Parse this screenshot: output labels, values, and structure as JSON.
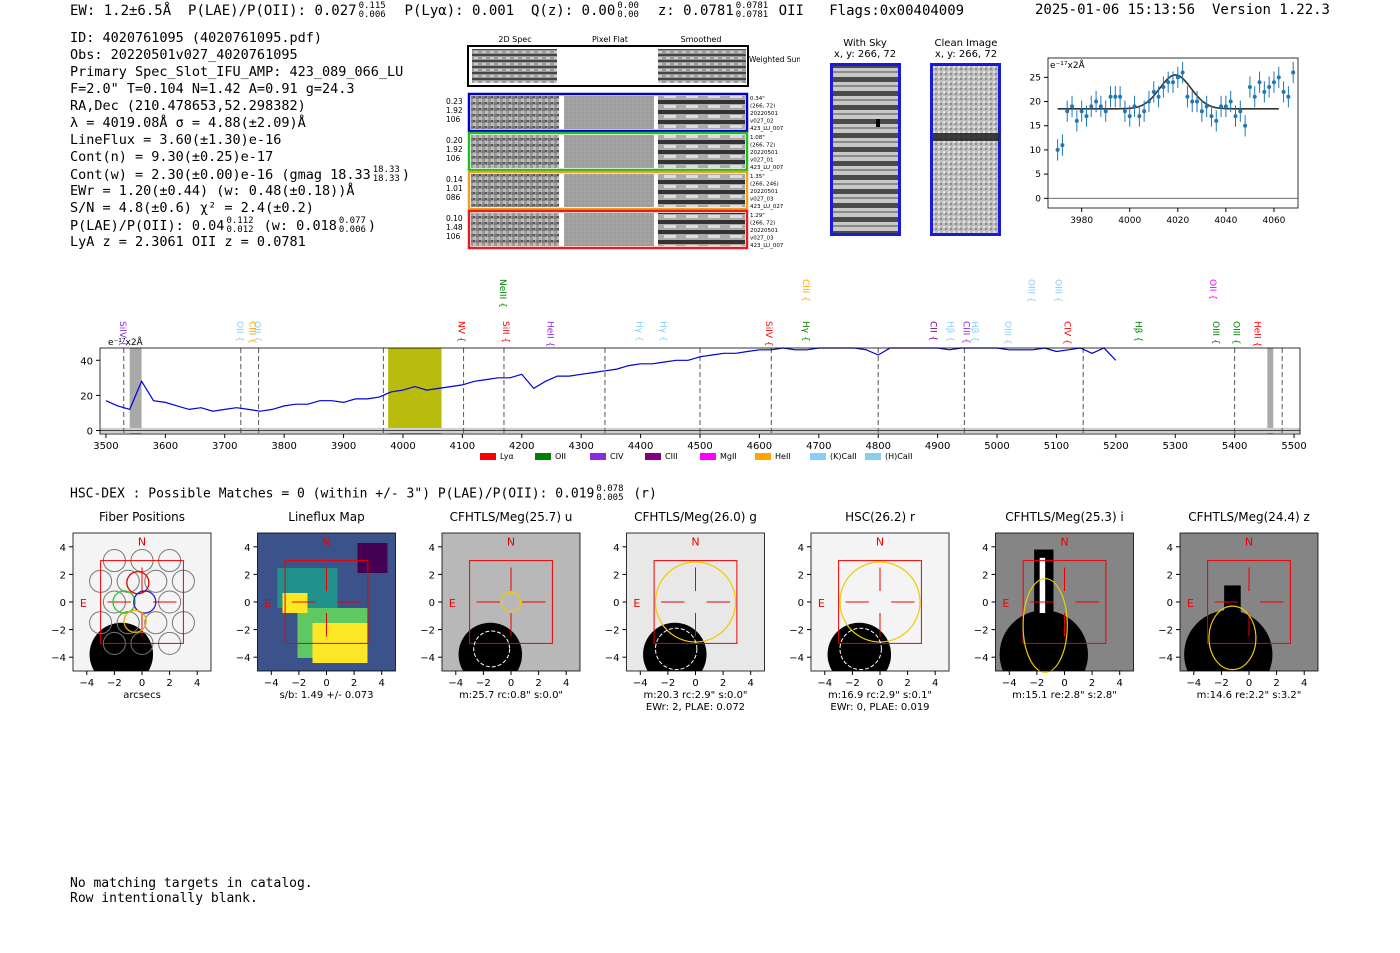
{
  "header": {
    "ew": "EW: 1.2±6.5Å",
    "plae_label": "P(LAE)/P(OII): 0.027",
    "plae_hi": "0.115",
    "plae_lo": "0.006",
    "plya": "P(Lyα): 0.001",
    "qz_label": "Q(z): 0.00",
    "qz_hi": "0.00",
    "qz_lo": "0.00",
    "z_label": "z: 0.0781",
    "z_hi": "0.0781",
    "z_lo": "0.0781",
    "z_line": "OII",
    "flags": "Flags:0x00404009",
    "datetime": "2025-01-06 15:13:56",
    "version": "Version 1.22.3"
  },
  "info_lines": {
    "id": "ID: 4020761095 (4020761095.pdf)",
    "obs": "Obs: 20220501v027_4020761095",
    "primary": "Primary Spec_Slot_IFU_AMP: 423_089_066_LU",
    "fit": "F=2.0\"  T=0.104  N=1.42  A=0.91  g=24.3",
    "radec": "RA,Dec (210.478653,52.298382)",
    "lambda": "λ = 4019.08Å   σ = 4.88(±2.09)Å",
    "lineflux": "LineFlux = 3.60(±1.30)e-16",
    "contn": "Cont(n) = 9.30(±0.25)e-17",
    "contw": "Cont(w) = 2.30(±0.00)e-16 (gmag 18.33",
    "contw_hi": "18.33",
    "contw_lo": "18.33",
    "contw_end": ")",
    "ewr": "EWr = 1.20(±0.44)  (w: 0.48(±0.18))Å",
    "sn": "S/N = 4.8(±0.6)  χ² = 2.4(±0.2)",
    "plae": "P(LAE)/P(OII): 0.04",
    "plae_hi": "0.112",
    "plae_lo": "0.012",
    "plae_w": "(w: 0.018",
    "plae_w_hi": "0.077",
    "plae_w_lo": "0.006",
    "plae_w_end": ")",
    "lya": "LyA z = 2.3061   OII z = 0.0781"
  },
  "cutouts": {
    "col_headers": [
      "2D Spec",
      "Pixel Flat",
      "Smoothed"
    ],
    "weighted_sum": "Weighted Sum",
    "rows": [
      {
        "left": [
          "0.23",
          "1.92",
          "106"
        ],
        "right": [
          "0.34\"",
          "(266, 72)",
          "20220501",
          "v027_02",
          "423_LU_007"
        ],
        "color": "#0000cc"
      },
      {
        "left": [
          "0.20",
          "1.92",
          "106"
        ],
        "right": [
          "1.08\"",
          "(266, 72)",
          "20220501",
          "v027_01",
          "423_LU_007"
        ],
        "color": "#22bb22"
      },
      {
        "left": [
          "0.14",
          "1.01",
          "086"
        ],
        "right": [
          "1.35\"",
          "(266, 246)",
          "20220501",
          "v027_03",
          "423_LU_027"
        ],
        "color": "#f0a020"
      },
      {
        "left": [
          "0.10",
          "1.48",
          "106"
        ],
        "right": [
          "1.29\"",
          "(266, 72)",
          "20220501",
          "v027_03",
          "423_LU_007"
        ],
        "color": "#e02020"
      }
    ]
  },
  "sky_panels": {
    "with_sky": "With Sky",
    "with_sky_xy": "x, y: 266, 72",
    "clean": "Clean Image",
    "clean_xy": "x, y: 266, 72"
  },
  "zoom_plot": {
    "unit": "e⁻¹⁷x2Å",
    "xticks": [
      "3980",
      "4000",
      "4020",
      "4040",
      "4060"
    ],
    "yticks": [
      "0",
      "5",
      "10",
      "15",
      "20",
      "25"
    ]
  },
  "spectrum": {
    "unit": "e⁻¹⁷x2Å",
    "xticks": [
      "3500",
      "3600",
      "3700",
      "3800",
      "3900",
      "4000",
      "4100",
      "4200",
      "4300",
      "4400",
      "4500",
      "4600",
      "4700",
      "4800",
      "4900",
      "5000",
      "5100",
      "5200",
      "5300",
      "5400",
      "5500"
    ],
    "yticks": [
      "0",
      "20",
      "40"
    ],
    "legend": [
      {
        "name": "Lyα",
        "color": "#ff0000"
      },
      {
        "name": "OII",
        "color": "#008000"
      },
      {
        "name": "CIV",
        "color": "#8a2be2"
      },
      {
        "name": "CIII",
        "color": "#800080"
      },
      {
        "name": "MgII",
        "color": "#ff00ff"
      },
      {
        "name": "HeII",
        "color": "#ffa500"
      },
      {
        "name": "(K)CaII",
        "color": "#87cefa"
      },
      {
        "name": "(H)CaII",
        "color": "#87ceeb"
      }
    ],
    "lines": [
      {
        "label": "SiIV",
        "w": 3530,
        "color": "#8a2be2",
        "row": 1
      },
      {
        "label": "OII",
        "w": 3727,
        "color": "#87cefa",
        "row": 1
      },
      {
        "label": "CIII",
        "w": 3748,
        "color": "#ffa500",
        "row": 1
      },
      {
        "label": "OII",
        "w": 3757,
        "color": "#87cefa",
        "row": 1
      },
      {
        "label": "NV",
        "w": 4100,
        "color": "#ff0000",
        "row": 1
      },
      {
        "label": "NeIII",
        "w": 4170,
        "color": "#008000",
        "row": 0
      },
      {
        "label": "SiII",
        "w": 4175,
        "color": "#ff0000",
        "row": 1
      },
      {
        "label": "HeII",
        "w": 4250,
        "color": "#8a2be2",
        "row": 1
      },
      {
        "label": "Hγ",
        "w": 4400,
        "color": "#87cefa",
        "row": 1
      },
      {
        "label": "Hγ",
        "w": 4440,
        "color": "#87cefa",
        "row": 1
      },
      {
        "label": "SiIV",
        "w": 4618,
        "color": "#ff0000",
        "row": 1
      },
      {
        "label": "CIII",
        "w": 4680,
        "color": "#ffa500",
        "row": 0
      },
      {
        "label": "Hγ",
        "w": 4680,
        "color": "#008000",
        "row": 1
      },
      {
        "label": "CII",
        "w": 4895,
        "color": "#800080",
        "row": 1
      },
      {
        "label": "Hβ",
        "w": 4923,
        "color": "#87cefa",
        "row": 1
      },
      {
        "label": "CIII",
        "w": 4950,
        "color": "#8a2be2",
        "row": 1
      },
      {
        "label": "Hβ",
        "w": 4965,
        "color": "#87cefa",
        "row": 1
      },
      {
        "label": "OIII",
        "w": 5020,
        "color": "#87cefa",
        "row": 1
      },
      {
        "label": "OIII",
        "w": 5060,
        "color": "#87cefa",
        "row": 0
      },
      {
        "label": "OIII",
        "w": 5105,
        "color": "#87cefa",
        "row": 0
      },
      {
        "label": "CIV",
        "w": 5120,
        "color": "#ff0000",
        "row": 1
      },
      {
        "label": "Hβ",
        "w": 5240,
        "color": "#008000",
        "row": 1
      },
      {
        "label": "OII",
        "w": 5365,
        "color": "#ff00ff",
        "row": 0
      },
      {
        "label": "OIII",
        "w": 5370,
        "color": "#008000",
        "row": 1
      },
      {
        "label": "OIII",
        "w": 5405,
        "color": "#008000",
        "row": 1
      },
      {
        "label": "HeII",
        "w": 5440,
        "color": "#ff0000",
        "row": 1
      }
    ]
  },
  "hsc": {
    "title": "HSC-DEX : Possible Matches = 0 (within +/- 3\")  P(LAE)/P(OII): 0.019",
    "hi": "0.078",
    "lo": "0.005",
    "tail": "(r)"
  },
  "panels": [
    {
      "title": "Fiber Positions",
      "l1": "arcsecs",
      "l2": "",
      "kind": "fiber"
    },
    {
      "title": "Lineflux Map",
      "l1": "s/b: 1.49 +/- 0.073",
      "l2": "",
      "kind": "map"
    },
    {
      "title": "CFHTLS/Meg(25.7) u",
      "l1": "m:25.7 rc:0.8\"  s:0.0\"",
      "l2": "",
      "kind": "u"
    },
    {
      "title": "CFHTLS/Meg(26.0) g",
      "l1": "m:20.3 rc:2.9\"  s:0.0\"",
      "l2": "EWr: 2, PLAE: 0.072",
      "kind": "g"
    },
    {
      "title": "HSC(26.2) r",
      "l1": "m:16.9 rc:2.9\"  s:0.1\"",
      "l2": "EWr: 0, PLAE: 0.019",
      "kind": "r"
    },
    {
      "title": "CFHTLS/Meg(25.3) i",
      "l1": "m:15.1  re:2.8\"  s:2.8\"",
      "l2": "",
      "kind": "i"
    },
    {
      "title": "CFHTLS/Meg(24.4) z",
      "l1": "m:14.6  re:2.2\"  s:3.2\"",
      "l2": "",
      "kind": "z"
    }
  ],
  "panel_ticks": [
    "−4",
    "−2",
    "0",
    "2",
    "4"
  ],
  "compass": {
    "n": "N",
    "e": "E"
  },
  "footer": [
    "No matching targets in catalog.",
    "Row intentionally blank."
  ],
  "chart_data": [
    {
      "type": "scatter",
      "title": "",
      "unit_label": "e⁻¹⁷x2Å",
      "xlim": [
        3966,
        4070
      ],
      "ylim": [
        -2,
        29
      ],
      "x": [
        3970,
        3972,
        3974,
        3976,
        3978,
        3980,
        3982,
        3984,
        3986,
        3988,
        3990,
        3992,
        3994,
        3996,
        3998,
        4000,
        4002,
        4004,
        4006,
        4008,
        4010,
        4012,
        4014,
        4016,
        4018,
        4020,
        4022,
        4024,
        4026,
        4028,
        4030,
        4032,
        4034,
        4036,
        4038,
        4040,
        4042,
        4044,
        4046,
        4048,
        4050,
        4052,
        4054,
        4056,
        4058,
        4060,
        4062,
        4064,
        4066,
        4068
      ],
      "y": [
        10,
        11,
        18,
        19,
        16,
        18,
        17,
        19,
        20,
        19,
        18,
        21,
        21,
        21,
        18,
        17,
        19,
        17,
        18,
        20,
        22,
        21,
        23,
        24,
        24,
        25,
        26,
        21,
        20,
        20,
        18,
        19,
        17,
        16,
        19,
        19,
        20,
        17,
        18,
        15,
        23,
        21,
        24,
        22,
        23,
        24,
        25,
        22,
        21,
        26
      ],
      "fit": "gaussian centered near 4019 on continuum ~18.5"
    },
    {
      "type": "line",
      "title": "",
      "unit_label": "e⁻¹⁷x2Å",
      "xlim": [
        3490,
        5510
      ],
      "ylim": [
        -2,
        47
      ],
      "series": [
        {
          "x": [
            3500,
            3520,
            3540,
            3560,
            3580,
            3600,
            3620,
            3640,
            3660,
            3680,
            3700,
            3720,
            3740,
            3760,
            3780,
            3800,
            3820,
            3840,
            3860,
            3880,
            3900,
            3920,
            3940,
            3960,
            3980,
            4000,
            4020,
            4040,
            4060,
            4080,
            4100,
            4120,
            4140,
            4160,
            4180,
            4200,
            4220,
            4240,
            4260,
            4280,
            4300,
            4320,
            4340,
            4360,
            4380,
            4400,
            4420,
            4440,
            4460,
            4480,
            4500,
            4520,
            4540,
            4560,
            4580,
            4600,
            4620,
            4640,
            4660,
            4680,
            4700,
            4720,
            4740,
            4760,
            4780,
            4800,
            4820,
            4840,
            4860,
            4880,
            4900,
            4920,
            4940,
            4960,
            4980,
            5000,
            5020,
            5040,
            5060,
            5080,
            5100,
            5120,
            5140,
            5160,
            5180,
            5200
          ],
          "y": [
            17,
            14,
            12,
            28,
            17,
            16,
            14,
            12,
            13,
            11,
            12,
            13,
            12,
            11,
            12,
            14,
            15,
            15,
            17,
            17,
            16,
            18,
            18,
            19,
            22,
            23,
            25,
            23,
            24,
            25,
            26,
            28,
            29,
            30,
            30,
            32,
            24,
            28,
            31,
            31,
            32,
            33,
            34,
            35,
            37,
            38,
            38,
            39,
            40,
            40,
            42,
            43,
            44,
            44,
            45,
            46,
            46,
            47,
            46,
            46,
            47,
            47,
            47,
            47,
            46,
            43,
            47,
            48,
            47,
            47,
            47,
            46,
            47,
            47,
            47,
            47,
            46,
            46,
            46,
            47,
            45,
            46,
            47,
            44,
            47,
            40
          ]
        }
      ],
      "shaded_regions": [
        [
          3540,
          3560
        ],
        [
          3975,
          4065
        ],
        [
          5455,
          5465
        ]
      ],
      "vlines": [
        3530,
        3727,
        3757,
        3967,
        4102,
        4170,
        4340,
        4500,
        4620,
        4800,
        4945,
        5145,
        5400,
        5480
      ]
    }
  ]
}
